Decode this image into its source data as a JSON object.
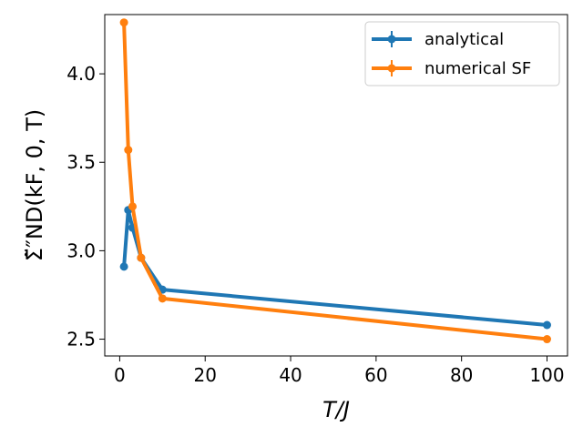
{
  "chart_data": {
    "type": "line",
    "xlabel": "T/J",
    "ylabel": "Σ̃″ND(kF, 0, T)",
    "xlim": [
      -3.5,
      104.8
    ],
    "ylim": [
      2.405,
      4.335
    ],
    "xticks": [
      0,
      20,
      40,
      60,
      80,
      100
    ],
    "yticks": [
      2.5,
      3.0,
      3.5,
      4.0
    ],
    "xtick_labels": [
      "0",
      "20",
      "40",
      "60",
      "80",
      "100"
    ],
    "ytick_labels": [
      "2.5",
      "3.0",
      "3.5",
      "4.0"
    ],
    "grid": false,
    "legend_position": "top-right",
    "series": [
      {
        "name": "analytical",
        "color": "#1f77b4",
        "x": [
          1,
          2,
          3,
          5,
          10,
          100
        ],
        "y": [
          2.91,
          3.23,
          3.13,
          2.96,
          2.78,
          2.58
        ]
      },
      {
        "name": "numerical SF",
        "color": "#ff7f0e",
        "x": [
          1,
          2,
          3,
          5,
          10,
          100
        ],
        "y": [
          4.29,
          3.57,
          3.25,
          2.96,
          2.73,
          2.5
        ]
      }
    ]
  }
}
